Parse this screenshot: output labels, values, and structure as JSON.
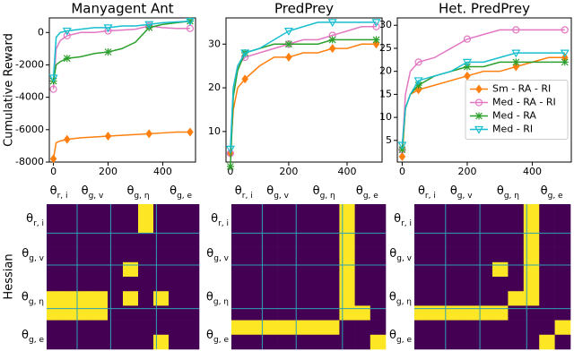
{
  "chart_data": [
    {
      "type": "line",
      "title": "Manyagent Ant",
      "ylabel": "Cumulative Reward",
      "x": [
        0,
        10,
        25,
        50,
        100,
        150,
        200,
        250,
        300,
        350,
        400,
        450,
        500
      ],
      "xlim": [
        -15,
        520
      ],
      "xticks": [
        0,
        200,
        400
      ],
      "ylim": [
        -8000,
        900
      ],
      "yticks": [
        0,
        -2000,
        -4000,
        -6000,
        -8000
      ],
      "series": [
        {
          "color": "#ff7f0e",
          "marker": "D",
          "values": [
            -7800,
            -6800,
            -6700,
            -6600,
            -6500,
            -6450,
            -6400,
            -6350,
            -6300,
            -6250,
            -6200,
            -6150,
            -6150
          ]
        },
        {
          "color": "#e377c2",
          "marker": "o",
          "values": [
            -3500,
            -1000,
            -500,
            -200,
            0,
            0,
            100,
            150,
            200,
            400,
            300,
            250,
            250
          ]
        },
        {
          "color": "#2ca02c",
          "marker": "x",
          "values": [
            -3000,
            -2000,
            -1800,
            -1600,
            -1500,
            -1300,
            -1200,
            -1000,
            -600,
            300,
            500,
            600,
            700
          ]
        },
        {
          "color": "#17becf",
          "marker": "v",
          "values": [
            -2800,
            -300,
            0,
            100,
            200,
            300,
            300,
            400,
            400,
            500,
            600,
            650,
            700
          ]
        }
      ]
    },
    {
      "type": "line",
      "title": "PredPrey",
      "x": [
        0,
        10,
        25,
        50,
        100,
        150,
        200,
        250,
        300,
        350,
        400,
        450,
        500
      ],
      "xlim": [
        -15,
        520
      ],
      "xticks": [
        0,
        200,
        400
      ],
      "ylim": [
        3,
        36
      ],
      "yticks": [
        10,
        20,
        30
      ],
      "series": [
        {
          "color": "#ff7f0e",
          "marker": "D",
          "values": [
            5,
            15,
            20,
            22,
            25,
            27,
            27,
            28,
            28,
            29,
            29,
            30,
            30
          ]
        },
        {
          "color": "#e377c2",
          "marker": "o",
          "values": [
            5,
            20,
            25,
            27,
            28,
            29,
            30,
            31,
            31,
            32,
            33,
            34,
            34
          ]
        },
        {
          "color": "#2ca02c",
          "marker": "x",
          "values": [
            2,
            18,
            24,
            28,
            29,
            30,
            30,
            30,
            30,
            31,
            31,
            31,
            31
          ]
        },
        {
          "color": "#17becf",
          "marker": "v",
          "values": [
            6,
            20,
            25,
            28,
            29,
            31,
            33,
            34,
            35,
            35,
            35,
            35,
            35
          ]
        }
      ]
    },
    {
      "type": "line",
      "title": "Het. PredPrey",
      "legend": "center right",
      "x": [
        0,
        10,
        25,
        50,
        100,
        150,
        200,
        250,
        300,
        350,
        400,
        450,
        500
      ],
      "xlim": [
        -15,
        520
      ],
      "xticks": [
        0,
        200,
        400
      ],
      "ylim": [
        0.3,
        31.6
      ],
      "yticks": [
        5,
        10,
        15,
        20,
        25,
        30
      ],
      "series": [
        {
          "name": "Sm - RA - RI",
          "color": "#ff7f0e",
          "marker": "D",
          "values": [
            1.5,
            12,
            15,
            16,
            17,
            18,
            19,
            20,
            20,
            21,
            22,
            23,
            23
          ]
        },
        {
          "name": "Med - RA - RI",
          "color": "#e377c2",
          "marker": "o",
          "values": [
            3,
            15,
            20,
            22,
            23,
            25,
            27,
            28,
            29,
            29,
            29,
            29,
            29
          ]
        },
        {
          "name": "Med - RA",
          "color": "#2ca02c",
          "marker": "x",
          "values": [
            3,
            12,
            15,
            17,
            19,
            20,
            21,
            21,
            22,
            22,
            22,
            22,
            22
          ]
        },
        {
          "name": "Med - RI",
          "color": "#17becf",
          "marker": "v",
          "values": [
            4,
            12,
            15,
            18,
            19,
            20,
            22,
            22,
            23,
            24,
            24,
            24,
            24
          ]
        }
      ]
    },
    {
      "type": "heatmap",
      "ylabel": "Hessian",
      "colors": [
        "#440154",
        "#fde725"
      ],
      "xlabels": [
        {
          "symbol": "θ",
          "sub": "r, i"
        },
        {
          "symbol": "θ",
          "sub": "g, v"
        },
        {
          "symbol": "θ",
          "sub": "g, η"
        },
        {
          "symbol": "θ",
          "sub": "g, e"
        }
      ],
      "ylabels": [
        {
          "symbol": "θ",
          "sub": "r, i"
        },
        {
          "symbol": "θ",
          "sub": "g, v"
        },
        {
          "symbol": "θ",
          "sub": "g, η"
        },
        {
          "symbol": "θ",
          "sub": "g, e"
        }
      ],
      "values": [
        [
          0,
          0,
          0,
          0,
          0,
          0,
          1,
          0,
          0,
          0
        ],
        [
          0,
          0,
          0,
          0,
          0,
          0,
          1,
          0,
          0,
          0
        ],
        [
          0,
          0,
          0,
          0,
          0,
          0,
          0,
          0,
          0,
          0
        ],
        [
          0,
          0,
          0,
          0,
          0,
          0,
          0,
          0,
          0,
          0
        ],
        [
          0,
          0,
          0,
          0,
          0,
          1,
          0,
          0,
          0,
          0
        ],
        [
          0,
          0,
          0,
          0,
          0,
          0,
          0,
          0,
          0,
          0
        ],
        [
          1,
          1,
          1,
          1,
          0,
          1,
          0,
          1,
          0,
          0
        ],
        [
          1,
          1,
          1,
          1,
          0,
          0,
          0,
          0,
          0,
          0
        ],
        [
          0,
          0,
          0,
          0,
          0,
          0,
          0,
          0,
          0,
          0
        ],
        [
          0,
          0,
          0,
          0,
          0,
          0,
          0,
          1,
          0,
          0
        ]
      ]
    },
    {
      "type": "heatmap",
      "xlabels": [
        {
          "symbol": "θ",
          "sub": "r, i"
        },
        {
          "symbol": "θ",
          "sub": "g, v"
        },
        {
          "symbol": "θ",
          "sub": "g, η"
        },
        {
          "symbol": "θ",
          "sub": "g, e"
        }
      ],
      "ylabels": [
        {
          "symbol": "θ",
          "sub": "r, i"
        },
        {
          "symbol": "θ",
          "sub": "g, v"
        },
        {
          "symbol": "θ",
          "sub": "g, η"
        },
        {
          "symbol": "θ",
          "sub": "g, e"
        }
      ],
      "colors": [
        "#440154",
        "#fde725"
      ],
      "values": [
        [
          0,
          0,
          0,
          0,
          0,
          0,
          0,
          1,
          0,
          0
        ],
        [
          0,
          0,
          0,
          0,
          0,
          0,
          0,
          1,
          0,
          0
        ],
        [
          0,
          0,
          0,
          0,
          0,
          0,
          0,
          1,
          0,
          0
        ],
        [
          0,
          0,
          0,
          0,
          0,
          0,
          0,
          1,
          0,
          0
        ],
        [
          0,
          0,
          0,
          0,
          0,
          0,
          0,
          1,
          0,
          0
        ],
        [
          0,
          0,
          0,
          0,
          0,
          0,
          0,
          1,
          0,
          0
        ],
        [
          0,
          0,
          0,
          0,
          0,
          0,
          0,
          1,
          0,
          0
        ],
        [
          0,
          0,
          0,
          0,
          0,
          0,
          0,
          1,
          1,
          0
        ],
        [
          1,
          1,
          1,
          1,
          1,
          1,
          1,
          0,
          0,
          0
        ],
        [
          0,
          0,
          0,
          0,
          0,
          0,
          0,
          0,
          0,
          1
        ]
      ]
    },
    {
      "type": "heatmap",
      "xlabels": [
        {
          "symbol": "θ",
          "sub": "r, i"
        },
        {
          "symbol": "θ",
          "sub": "g, v"
        },
        {
          "symbol": "θ",
          "sub": "g, η"
        },
        {
          "symbol": "θ",
          "sub": "g, e"
        }
      ],
      "ylabels": [
        {
          "symbol": "θ",
          "sub": "r, i"
        },
        {
          "symbol": "θ",
          "sub": "g, v"
        },
        {
          "symbol": "θ",
          "sub": "g, η"
        },
        {
          "symbol": "θ",
          "sub": "g, e"
        }
      ],
      "colors": [
        "#440154",
        "#fde725"
      ],
      "values": [
        [
          0,
          0,
          0,
          0,
          0,
          0,
          0,
          1,
          0,
          0
        ],
        [
          0,
          0,
          0,
          0,
          0,
          0,
          0,
          1,
          0,
          0
        ],
        [
          0,
          0,
          0,
          0,
          0,
          0,
          0,
          1,
          0,
          0
        ],
        [
          0,
          0,
          0,
          0,
          0,
          0,
          0,
          1,
          0,
          0
        ],
        [
          0,
          0,
          0,
          0,
          0,
          1,
          0,
          1,
          0,
          0
        ],
        [
          0,
          0,
          0,
          0,
          0,
          0,
          0,
          1,
          0,
          0
        ],
        [
          0,
          0,
          0,
          0,
          0,
          0,
          1,
          1,
          0,
          0
        ],
        [
          1,
          1,
          1,
          1,
          1,
          1,
          0,
          0,
          0,
          0
        ],
        [
          0,
          0,
          0,
          0,
          0,
          0,
          0,
          0,
          0,
          1
        ],
        [
          0,
          0,
          0,
          0,
          0,
          0,
          0,
          0,
          1,
          0
        ]
      ]
    }
  ]
}
